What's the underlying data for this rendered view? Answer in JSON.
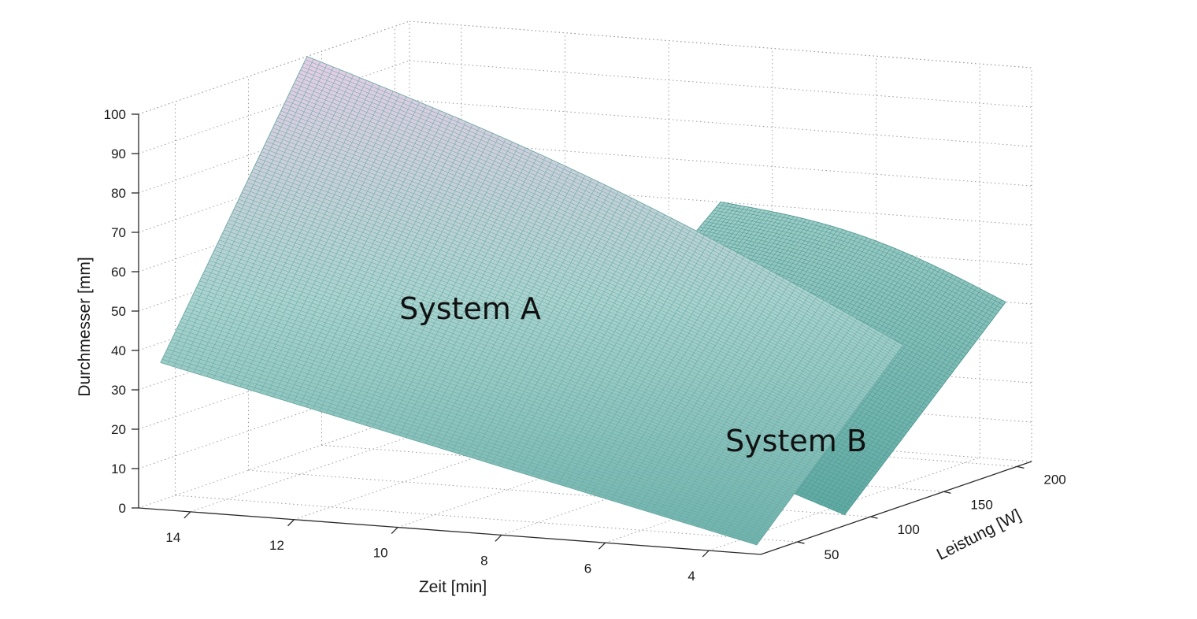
{
  "chart_data": {
    "type": "surface3d",
    "title": "",
    "xlabel": "Zeit [min]",
    "ylabel": "Leistung [W]",
    "zlabel": "Durchmesser [mm]",
    "x_ticks": [
      "14",
      "12",
      "10",
      "8",
      "6",
      "4"
    ],
    "y_ticks": [
      "50",
      "100",
      "150",
      "200"
    ],
    "z_ticks": [
      "0",
      "10",
      "20",
      "30",
      "40",
      "50",
      "60",
      "70",
      "80",
      "90",
      "100"
    ],
    "xlim": [
      3,
      15
    ],
    "ylim": [
      25,
      210
    ],
    "zlim": [
      0,
      100
    ],
    "grid": true,
    "colormap": [
      "#6fb3ad",
      "#a9d3cf",
      "#e6cde6"
    ],
    "surfaces": [
      {
        "label": "System A",
        "x_range": [
          3.5,
          15
        ],
        "y_range": [
          40,
          140
        ],
        "corner_z": {
          "x15_y40": 35,
          "x15_y140": 100,
          "x3.5_y40": 0,
          "x3.5_y140": 38
        }
      },
      {
        "label": "System B",
        "x_range": [
          3.5,
          9
        ],
        "y_range": [
          100,
          210
        ],
        "corner_z": {
          "x9_y100": 25,
          "x9_y210": 60,
          "x3.5_y100": 0,
          "x3.5_y210": 40
        }
      }
    ]
  }
}
